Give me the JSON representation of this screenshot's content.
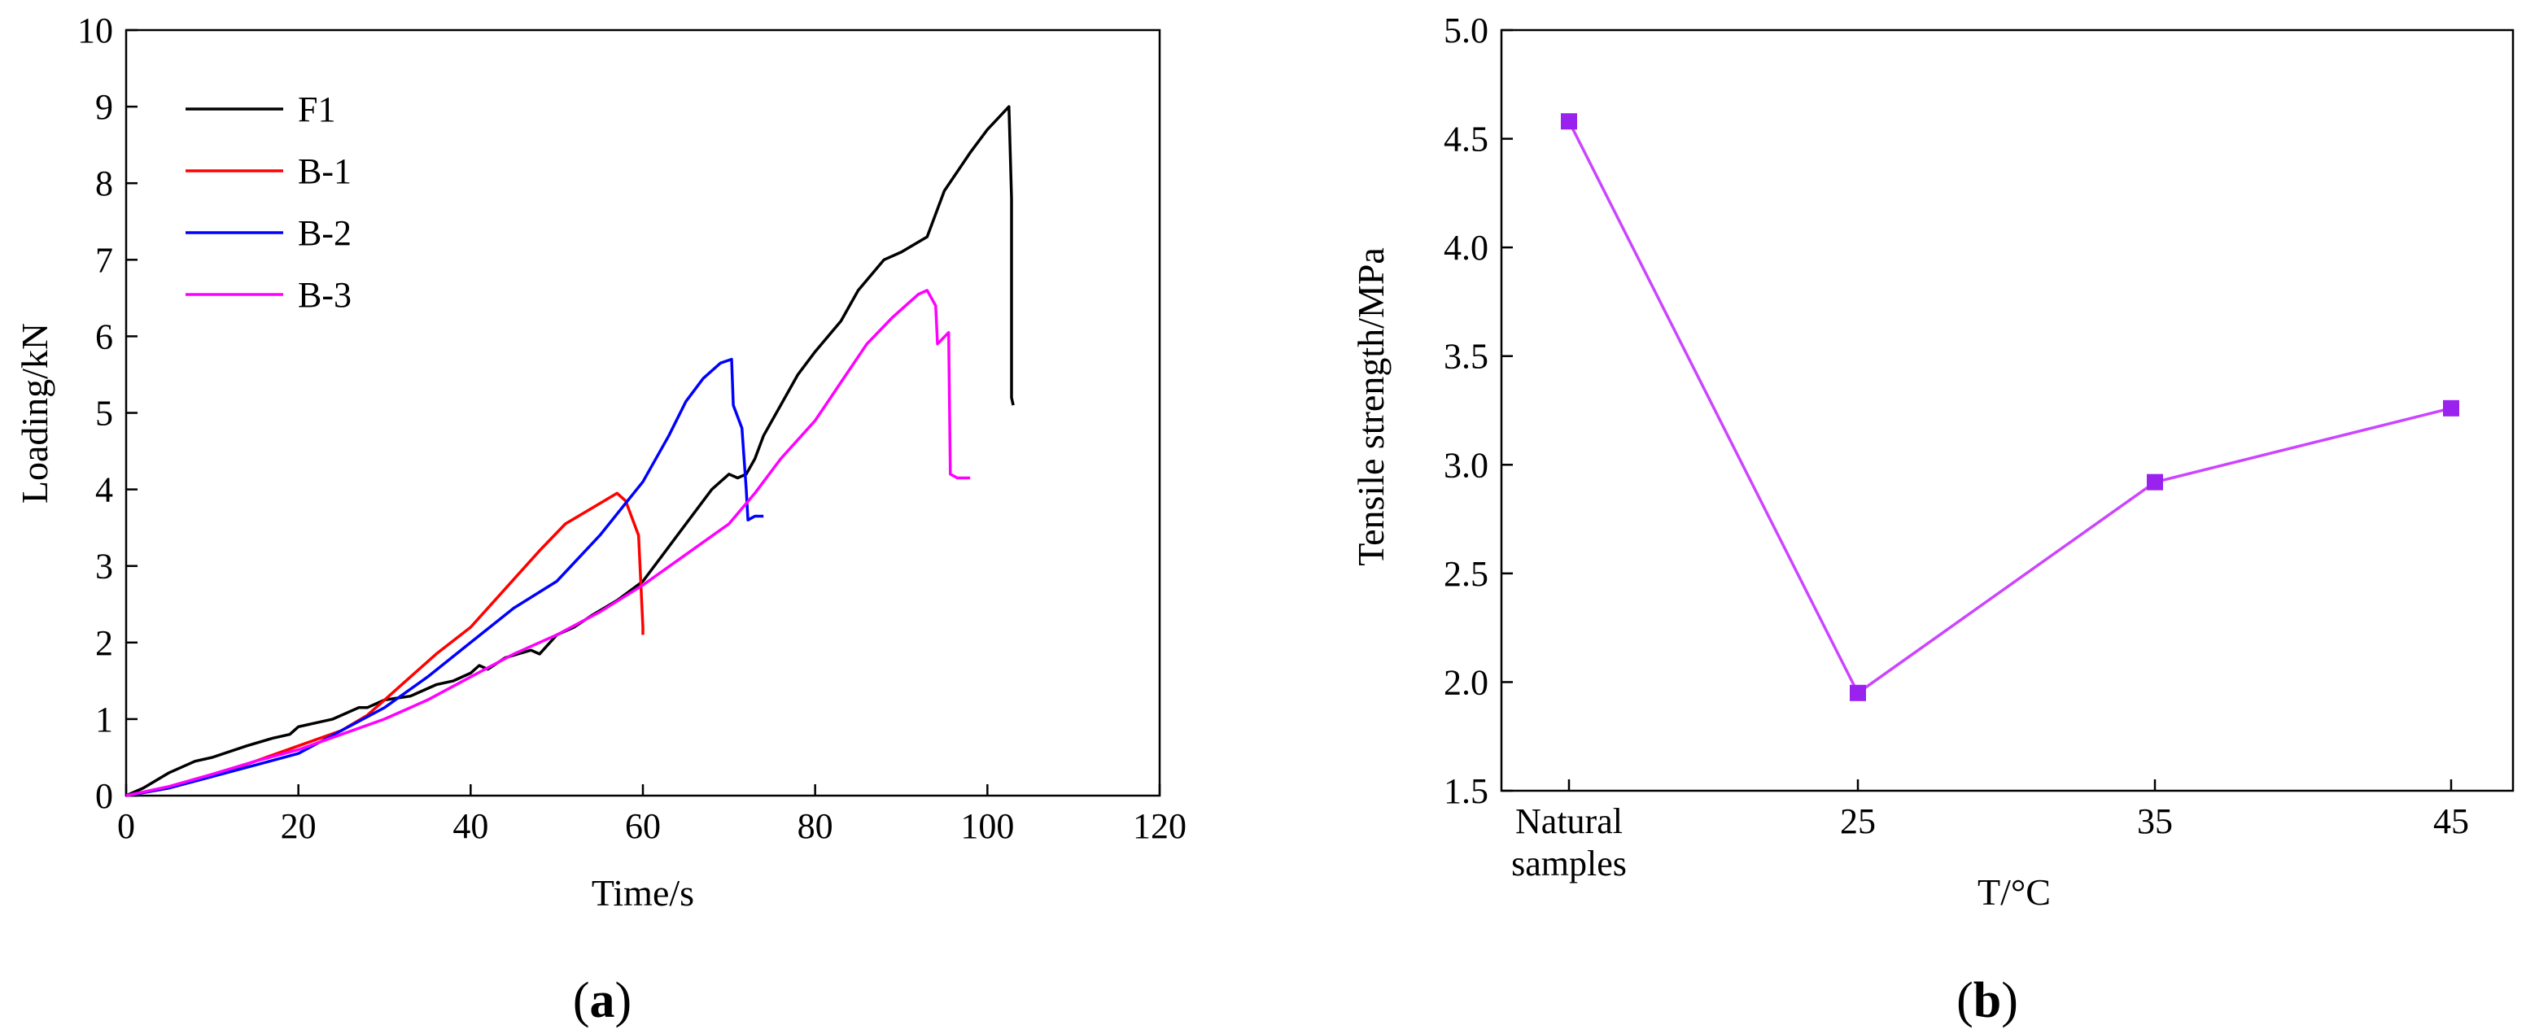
{
  "chart_data": [
    {
      "type": "line",
      "panel_label_letter": "a",
      "xlabel": "Time/s",
      "ylabel": "Loading/kN",
      "xlim": [
        0,
        120
      ],
      "ylim": [
        0,
        10
      ],
      "xticks": [
        0,
        20,
        40,
        60,
        80,
        100,
        120
      ],
      "yticks": [
        0,
        1,
        2,
        3,
        4,
        5,
        6,
        7,
        8,
        9,
        10
      ],
      "legend_position": "top-left",
      "series": [
        {
          "name": "F1",
          "color": "#000000",
          "x": [
            0,
            2,
            5,
            8,
            10,
            14,
            17,
            19,
            20,
            24,
            27,
            28,
            30,
            33,
            36,
            38,
            40,
            41,
            42,
            44,
            47,
            48,
            50,
            52,
            54,
            57,
            60,
            62,
            64,
            66,
            68,
            70,
            71,
            72,
            73,
            74,
            76,
            78,
            80,
            83,
            85,
            88,
            90,
            93,
            95,
            98,
            100,
            102.5,
            102.8,
            102.8,
            103
          ],
          "y": [
            0,
            0.1,
            0.3,
            0.45,
            0.5,
            0.65,
            0.75,
            0.8,
            0.9,
            1.0,
            1.15,
            1.15,
            1.25,
            1.3,
            1.45,
            1.5,
            1.6,
            1.7,
            1.65,
            1.8,
            1.9,
            1.85,
            2.1,
            2.2,
            2.35,
            2.55,
            2.8,
            3.1,
            3.4,
            3.7,
            4.0,
            4.2,
            4.15,
            4.2,
            4.4,
            4.7,
            5.1,
            5.5,
            5.8,
            6.2,
            6.6,
            7.0,
            7.1,
            7.3,
            7.9,
            8.4,
            8.7,
            9.0,
            7.8,
            5.2,
            5.1
          ]
        },
        {
          "name": "B-1",
          "color": "#ff0000",
          "x": [
            0,
            5,
            10,
            15,
            20,
            25,
            28,
            30,
            33,
            36,
            40,
            44,
            48,
            51,
            54,
            57,
            58,
            58.5,
            59.5,
            60,
            60
          ],
          "y": [
            0,
            0.1,
            0.25,
            0.45,
            0.65,
            0.85,
            1.05,
            1.25,
            1.55,
            1.85,
            2.2,
            2.7,
            3.2,
            3.55,
            3.75,
            3.95,
            3.85,
            3.7,
            3.4,
            2.2,
            2.1
          ]
        },
        {
          "name": "B-2",
          "color": "#0000ff",
          "x": [
            0,
            5,
            10,
            15,
            20,
            25,
            30,
            35,
            40,
            45,
            50,
            55,
            60,
            63,
            65,
            67,
            69,
            70.3,
            70.5,
            71.5,
            72,
            72.2,
            73,
            74
          ],
          "y": [
            0,
            0.1,
            0.25,
            0.4,
            0.55,
            0.85,
            1.15,
            1.55,
            2.0,
            2.45,
            2.8,
            3.4,
            4.1,
            4.7,
            5.15,
            5.45,
            5.65,
            5.7,
            5.1,
            4.8,
            4.0,
            3.6,
            3.65,
            3.65
          ]
        },
        {
          "name": "B-3",
          "color": "#ff00ff",
          "x": [
            0,
            5,
            10,
            15,
            20,
            25,
            30,
            35,
            40,
            45,
            50,
            55,
            60,
            65,
            70,
            73,
            76,
            80,
            83,
            86,
            89,
            92,
            93,
            94,
            94.2,
            95.5,
            95.7,
            96.5,
            98
          ],
          "y": [
            0,
            0.12,
            0.28,
            0.45,
            0.6,
            0.8,
            1.0,
            1.25,
            1.55,
            1.85,
            2.1,
            2.4,
            2.75,
            3.15,
            3.55,
            3.95,
            4.4,
            4.9,
            5.4,
            5.9,
            6.25,
            6.55,
            6.6,
            6.4,
            5.9,
            6.05,
            4.2,
            4.15,
            4.15
          ]
        }
      ]
    },
    {
      "type": "line",
      "panel_label_letter": "b",
      "xlabel": "T/°C",
      "ylabel": "Tensile strength/MPa",
      "ylim": [
        1.5,
        5.0
      ],
      "yticks": [
        "1.5",
        "2.0",
        "2.5",
        "3.0",
        "3.5",
        "4.0",
        "4.5",
        "5.0"
      ],
      "categories": [
        [
          "Natural",
          "samples"
        ],
        [
          "25"
        ],
        [
          "35"
        ],
        [
          "45"
        ]
      ],
      "values": [
        4.58,
        1.95,
        2.92,
        3.26
      ],
      "line_color": "#cc44ff",
      "marker_color": "#9922ee"
    }
  ]
}
